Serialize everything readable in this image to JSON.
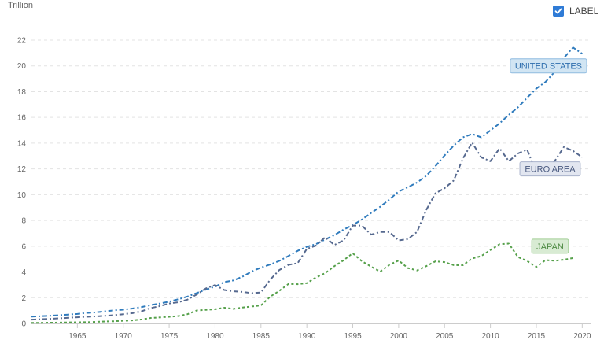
{
  "unit_label": "Trillion",
  "toggle": {
    "label": "LABEL",
    "checked": true
  },
  "chart_data": {
    "type": "line",
    "ylabel": "Trillion",
    "ylim": [
      0,
      22
    ],
    "xlim": [
      1960,
      2021
    ],
    "y_ticks": [
      0,
      2,
      4,
      6,
      8,
      10,
      12,
      14,
      16,
      18,
      20,
      22
    ],
    "x_ticks": [
      1965,
      1970,
      1975,
      1980,
      1985,
      1990,
      1995,
      2000,
      2005,
      2010,
      2015,
      2020
    ],
    "grid": true,
    "series": [
      {
        "name": "UNITED STATES",
        "color": "#2f7bbd",
        "label_bg": "#d1e5f3",
        "label_border": "#8fbbe0",
        "label_text_color": "#2f6fae",
        "label_at": [
          2016.5,
          20.0
        ],
        "dash": "6 3 2 3",
        "x": [
          1960,
          1961,
          1962,
          1963,
          1964,
          1965,
          1966,
          1967,
          1968,
          1969,
          1970,
          1971,
          1972,
          1973,
          1974,
          1975,
          1976,
          1977,
          1978,
          1979,
          1980,
          1981,
          1982,
          1983,
          1984,
          1985,
          1986,
          1987,
          1988,
          1989,
          1990,
          1991,
          1992,
          1993,
          1994,
          1995,
          1996,
          1997,
          1998,
          1999,
          2000,
          2001,
          2002,
          2003,
          2004,
          2005,
          2006,
          2007,
          2008,
          2009,
          2010,
          2011,
          2012,
          2013,
          2014,
          2015,
          2016,
          2017,
          2018,
          2019,
          2020
        ],
        "values": [
          0.54,
          0.56,
          0.6,
          0.64,
          0.69,
          0.74,
          0.82,
          0.86,
          0.94,
          1.02,
          1.07,
          1.16,
          1.28,
          1.43,
          1.55,
          1.69,
          1.88,
          2.09,
          2.36,
          2.63,
          2.86,
          3.21,
          3.34,
          3.64,
          4.04,
          4.34,
          4.58,
          4.86,
          5.24,
          5.64,
          5.96,
          6.16,
          6.52,
          6.86,
          7.29,
          7.64,
          8.07,
          8.58,
          9.06,
          9.63,
          10.25,
          10.58,
          10.94,
          11.46,
          12.21,
          13.04,
          13.81,
          14.45,
          14.71,
          14.45,
          14.99,
          15.54,
          16.2,
          16.78,
          17.53,
          18.24,
          18.75,
          19.54,
          20.61,
          21.43,
          20.94
        ]
      },
      {
        "name": "EURO AREA",
        "color": "#56698f",
        "label_bg": "#e2e6f0",
        "label_border": "#a9b3cc",
        "label_text_color": "#4b5b80",
        "label_at": [
          2016.5,
          12.0
        ],
        "dash": "6 3 2 3",
        "x": [
          1960,
          1961,
          1962,
          1963,
          1964,
          1965,
          1966,
          1967,
          1968,
          1969,
          1970,
          1971,
          1972,
          1973,
          1974,
          1975,
          1976,
          1977,
          1978,
          1979,
          1980,
          1981,
          1982,
          1983,
          1984,
          1985,
          1986,
          1987,
          1988,
          1989,
          1990,
          1991,
          1992,
          1993,
          1994,
          1995,
          1996,
          1997,
          1998,
          1999,
          2000,
          2001,
          2002,
          2003,
          2004,
          2005,
          2006,
          2007,
          2008,
          2009,
          2010,
          2011,
          2012,
          2013,
          2014,
          2015,
          2016,
          2017,
          2018,
          2019,
          2020
        ],
        "values": [
          0.3,
          0.33,
          0.36,
          0.4,
          0.44,
          0.48,
          0.52,
          0.55,
          0.59,
          0.65,
          0.72,
          0.8,
          0.95,
          1.2,
          1.35,
          1.55,
          1.65,
          1.85,
          2.25,
          2.72,
          2.98,
          2.6,
          2.5,
          2.45,
          2.35,
          2.4,
          3.4,
          4.15,
          4.55,
          4.68,
          5.8,
          6.05,
          6.7,
          6.1,
          6.45,
          7.6,
          7.6,
          6.9,
          7.1,
          7.1,
          6.45,
          6.55,
          7.1,
          8.8,
          10.1,
          10.5,
          11.1,
          12.8,
          14.05,
          12.9,
          12.6,
          13.6,
          12.6,
          13.2,
          13.5,
          11.7,
          12.0,
          12.6,
          13.7,
          13.4,
          12.9
        ]
      },
      {
        "name": "JAPAN",
        "color": "#55a04a",
        "label_bg": "#d8ebd3",
        "label_border": "#a3cf98",
        "label_text_color": "#4e8a44",
        "label_at": [
          2016.5,
          6.0
        ],
        "dash": "3 3",
        "x": [
          1960,
          1961,
          1962,
          1963,
          1964,
          1965,
          1966,
          1967,
          1968,
          1969,
          1970,
          1971,
          1972,
          1973,
          1974,
          1975,
          1976,
          1977,
          1978,
          1979,
          1980,
          1981,
          1982,
          1983,
          1984,
          1985,
          1986,
          1987,
          1988,
          1989,
          1990,
          1991,
          1992,
          1993,
          1994,
          1995,
          1996,
          1997,
          1998,
          1999,
          2000,
          2001,
          2002,
          2003,
          2004,
          2005,
          2006,
          2007,
          2008,
          2009,
          2010,
          2011,
          2012,
          2013,
          2014,
          2015,
          2016,
          2017,
          2018,
          2019
        ],
        "values": [
          0.04,
          0.05,
          0.06,
          0.07,
          0.08,
          0.09,
          0.1,
          0.12,
          0.15,
          0.17,
          0.21,
          0.24,
          0.31,
          0.43,
          0.47,
          0.52,
          0.58,
          0.72,
          1.01,
          1.06,
          1.1,
          1.22,
          1.13,
          1.24,
          1.32,
          1.4,
          2.08,
          2.53,
          3.07,
          3.05,
          3.13,
          3.58,
          3.91,
          4.45,
          4.91,
          5.45,
          4.83,
          4.41,
          4.03,
          4.56,
          4.89,
          4.3,
          4.12,
          4.45,
          4.82,
          4.76,
          4.53,
          4.52,
          5.04,
          5.23,
          5.7,
          6.16,
          6.2,
          5.16,
          4.85,
          4.39,
          4.92,
          4.87,
          4.95,
          5.08
        ]
      }
    ]
  }
}
